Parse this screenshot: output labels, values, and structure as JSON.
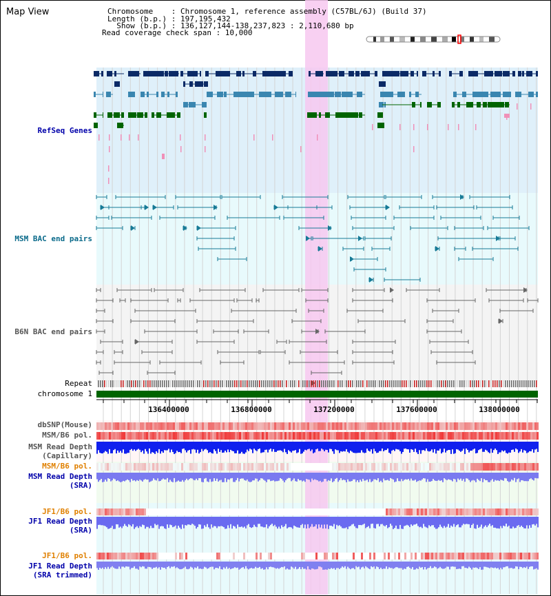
{
  "header": {
    "title": "Map View",
    "info_lines": [
      "Chromosome    : Chromosome 1, reference assembly (C57BL/6J) (Build 37)",
      "Length (b.p.) : 197,195,432",
      "  Show (b.p.) : 136,127,144-138,237,823 : 2,110,680 bp",
      "Read coverage check span : 10,000"
    ]
  },
  "tracks": {
    "refseq": "RefSeq Genes",
    "msm_bac": "MSM BAC end pairs",
    "b6n_bac": "B6N BAC end pairs",
    "repeat": "Repeat",
    "chromosome": "chromosome 1",
    "dbsnp": "dbSNP(Mouse)",
    "msm_b6_pol": "MSM/B6 pol.",
    "msm_read_depth_cap_1": "MSM Read Depth",
    "msm_read_depth_cap_2": "(Capillary)",
    "msm_b6_pol_2": "MSM/B6 pol.",
    "msm_read_depth_sra_1": "MSM Read Depth",
    "msm_read_depth_sra_2": "(SRA)",
    "jf1_b6_pol": "JF1/B6 pol.",
    "jf1_read_depth_sra_1": "JF1 Read Depth",
    "jf1_read_depth_sra_2": "(SRA)",
    "jf1_b6_pol_2": "JF1/B6 pol.",
    "jf1_read_depth_trim_1": "JF1 Read Depth",
    "jf1_read_depth_trim_2": "(SRA trimmed)"
  },
  "ruler": {
    "ticks": [
      "136400000",
      "136800000",
      "137200000",
      "137600000",
      "138000000"
    ]
  },
  "colors": {
    "label_blue": "#0000aa",
    "label_teal": "#0a6a8a",
    "label_gray": "#555555",
    "label_orange": "#e08000",
    "refseq_bg": "#dff0fa",
    "msm_bg": "#e8fafc",
    "b6n_bg": "#f4f4f4",
    "highlight": "#f7c8f0",
    "chromosome_green": "#006400"
  }
}
